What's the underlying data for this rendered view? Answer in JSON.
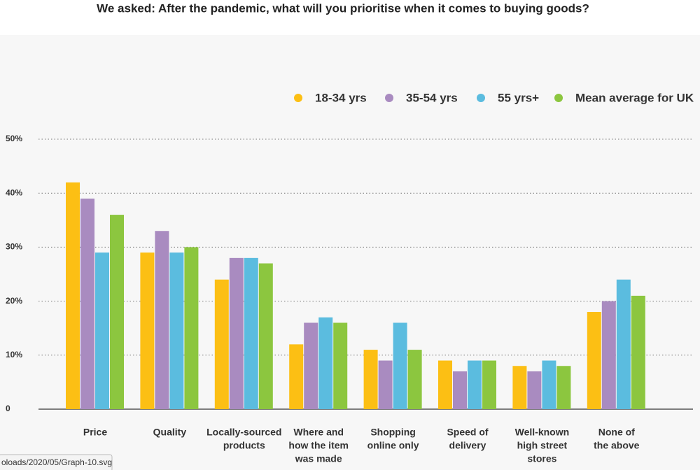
{
  "chart_data": {
    "type": "bar",
    "title": "We asked: After the pandemic, what will you prioritise when it comes to buying goods?",
    "categories": [
      [
        "Price"
      ],
      [
        "Quality"
      ],
      [
        "Locally-sourced",
        "products"
      ],
      [
        "Where and",
        "how the item",
        "was made"
      ],
      [
        "Shopping",
        "online only"
      ],
      [
        "Speed of",
        "delivery"
      ],
      [
        "Well-known",
        "high street",
        "stores"
      ],
      [
        "None of",
        "the above"
      ]
    ],
    "series": [
      {
        "name": "18-34 yrs",
        "color": "#fcbf14",
        "values": [
          42,
          29,
          24,
          12,
          11,
          9,
          8,
          18
        ]
      },
      {
        "name": "35-54 yrs",
        "color": "#a98bc0",
        "values": [
          39,
          33,
          28,
          16,
          9,
          7,
          7,
          20
        ]
      },
      {
        "name": "55 yrs+",
        "color": "#5bbcdf",
        "values": [
          29,
          29,
          28,
          17,
          16,
          9,
          9,
          24
        ]
      },
      {
        "name": "Mean average for UK",
        "color": "#8cc63f",
        "values": [
          36,
          30,
          27,
          16,
          11,
          9,
          8,
          21
        ]
      }
    ],
    "ylim": [
      0,
      50
    ],
    "yticks": [
      0,
      {
        "value": 10,
        "label": "10%"
      },
      {
        "value": 20,
        "label": "20%"
      },
      {
        "value": 30,
        "label": "30%"
      },
      {
        "value": 40,
        "label": "40%"
      },
      {
        "value": 50,
        "label": "50%"
      }
    ],
    "grid": true,
    "legend": "top-right"
  },
  "status_bar": "oloads/2020/05/Graph-10.svg"
}
